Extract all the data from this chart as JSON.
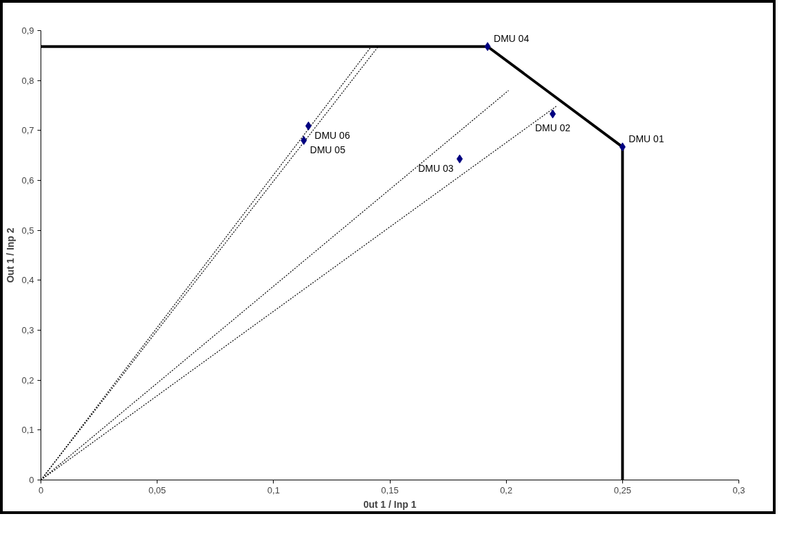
{
  "chart_data": {
    "type": "scatter",
    "xlabel": "0ut 1 / Inp 1",
    "ylabel": "Out 1 / Inp 2",
    "xlim": [
      0,
      0.3
    ],
    "ylim": [
      0,
      0.9
    ],
    "xticks": [
      0,
      {
        "value": 0.05,
        "label": "0,05"
      },
      {
        "value": 0.1,
        "label": "0,1"
      },
      {
        "value": 0.15,
        "label": "0,15"
      },
      {
        "value": 0.2,
        "label": "0,2"
      },
      {
        "value": 0.25,
        "label": "0,25"
      },
      {
        "value": 0.3,
        "label": "0,3"
      }
    ],
    "yticks": [
      0,
      {
        "value": 0.1,
        "label": "0,1"
      },
      {
        "value": 0.2,
        "label": "0,2"
      },
      {
        "value": 0.3,
        "label": "0,3"
      },
      {
        "value": 0.4,
        "label": "0,4"
      },
      {
        "value": 0.5,
        "label": "0,5"
      },
      {
        "value": 0.6,
        "label": "0,6"
      },
      {
        "value": 0.7,
        "label": "0,7"
      },
      {
        "value": 0.8,
        "label": "0,8"
      },
      {
        "value": 0.9,
        "label": "0,9"
      }
    ],
    "grid": false,
    "series": [
      {
        "type": "line",
        "color": "#000000",
        "line_style": "solid",
        "marker": "none",
        "x": [
          0,
          0.192,
          0.25,
          0.25
        ],
        "values": [
          0.868,
          0.868,
          0.667,
          0
        ]
      },
      {
        "type": "line",
        "color": "#000000",
        "line_style": "dotted",
        "marker": "none",
        "x": [
          0,
          0.142
        ],
        "values": [
          0,
          0.868
        ]
      },
      {
        "type": "line",
        "color": "#000000",
        "line_style": "dotted",
        "marker": "none",
        "x": [
          0,
          0.145
        ],
        "values": [
          0,
          0.868
        ]
      },
      {
        "type": "line",
        "color": "#000000",
        "line_style": "dotted",
        "marker": "none",
        "x": [
          0,
          0.201
        ],
        "values": [
          0,
          0.78
        ]
      },
      {
        "type": "line",
        "color": "#000000",
        "line_style": "dotted",
        "marker": "none",
        "x": [
          0,
          0.222
        ],
        "values": [
          0,
          0.75
        ]
      },
      {
        "type": "scatter",
        "color": "#000080",
        "marker": "diamond",
        "x": [
          0.25,
          0.22,
          0.18,
          0.192,
          0.113,
          0.115
        ],
        "values": [
          0.667,
          0.733,
          0.643,
          0.868,
          0.68,
          0.709
        ]
      }
    ],
    "annotations": [
      {
        "text": "DMU 01",
        "x": 0.25,
        "y": 0.667
      },
      {
        "text": "DMU 02",
        "x": 0.22,
        "y": 0.733
      },
      {
        "text": "DMU 03",
        "x": 0.18,
        "y": 0.643
      },
      {
        "text": "DMU 04",
        "x": 0.192,
        "y": 0.868
      },
      {
        "text": "DMU 05",
        "x": 0.113,
        "y": 0.68
      },
      {
        "text": "DMU 06",
        "x": 0.115,
        "y": 0.709
      }
    ]
  }
}
